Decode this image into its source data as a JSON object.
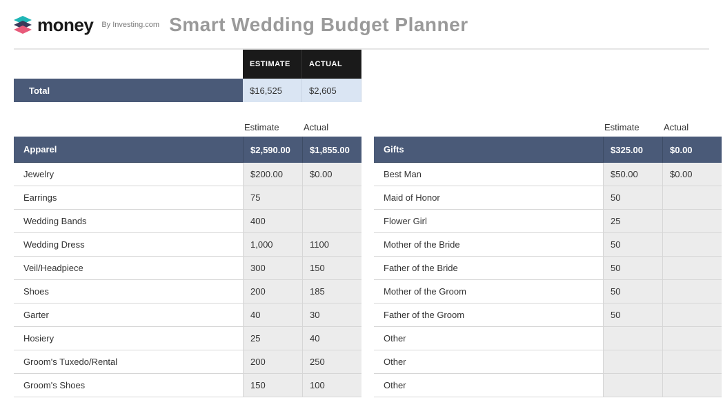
{
  "header": {
    "brand": "money",
    "byline": "By Investing.com",
    "title": "Smart Wedding Budget Planner"
  },
  "colors": {
    "header_bg": "#1a1a1a",
    "section_bg": "#4a5a78",
    "total_cell_bg": "#dae5f3",
    "item_cell_bg": "#ececec",
    "border": "#d6d6d6",
    "title_text": "#9a9a9a"
  },
  "summary": {
    "head_estimate": "ESTIMATE",
    "head_actual": "ACTUAL",
    "label": "Total",
    "estimate": "$16,525",
    "actual": "$2,605"
  },
  "col_labels": {
    "estimate": "Estimate",
    "actual": "Actual"
  },
  "left": {
    "category": {
      "name": "Apparel",
      "estimate": "$2,590.00",
      "actual": "$1,855.00"
    },
    "items": [
      {
        "name": "Jewelry",
        "estimate": "$200.00",
        "actual": "$0.00"
      },
      {
        "name": "Earrings",
        "estimate": "75",
        "actual": ""
      },
      {
        "name": "Wedding Bands",
        "estimate": "400",
        "actual": ""
      },
      {
        "name": "Wedding Dress",
        "estimate": "1,000",
        "actual": "1100"
      },
      {
        "name": "Veil/Headpiece",
        "estimate": "300",
        "actual": "150"
      },
      {
        "name": "Shoes",
        "estimate": "200",
        "actual": "185"
      },
      {
        "name": "Garter",
        "estimate": "40",
        "actual": "30"
      },
      {
        "name": "Hosiery",
        "estimate": "25",
        "actual": "40"
      },
      {
        "name": "Groom's Tuxedo/Rental",
        "estimate": "200",
        "actual": "250"
      },
      {
        "name": "Groom's Shoes",
        "estimate": "150",
        "actual": "100"
      }
    ]
  },
  "right": {
    "category": {
      "name": "Gifts",
      "estimate": "$325.00",
      "actual": "$0.00"
    },
    "items": [
      {
        "name": "Best Man",
        "estimate": "$50.00",
        "actual": "$0.00"
      },
      {
        "name": "Maid of Honor",
        "estimate": "50",
        "actual": ""
      },
      {
        "name": "Flower Girl",
        "estimate": "25",
        "actual": ""
      },
      {
        "name": "Mother of the Bride",
        "estimate": "50",
        "actual": ""
      },
      {
        "name": "Father of the Bride",
        "estimate": "50",
        "actual": ""
      },
      {
        "name": "Mother of the Groom",
        "estimate": "50",
        "actual": ""
      },
      {
        "name": "Father of the Groom",
        "estimate": "50",
        "actual": ""
      },
      {
        "name": "Other",
        "estimate": "",
        "actual": ""
      },
      {
        "name": "Other",
        "estimate": "",
        "actual": ""
      },
      {
        "name": "Other",
        "estimate": "",
        "actual": ""
      }
    ]
  }
}
